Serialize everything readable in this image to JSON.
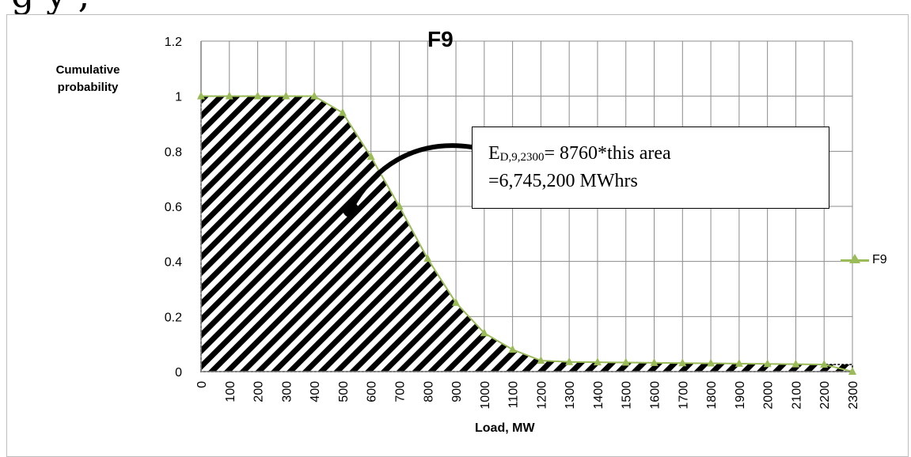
{
  "header_text": "g       y     ,",
  "chart_data": {
    "type": "area",
    "title": "F9",
    "xlabel": "Load, MW",
    "ylabel": "Cumulative probability",
    "x": [
      0,
      100,
      200,
      300,
      400,
      500,
      600,
      700,
      800,
      900,
      1000,
      1100,
      1200,
      1300,
      1400,
      1500,
      1600,
      1700,
      1800,
      1900,
      2000,
      2100,
      2200,
      2300
    ],
    "xlim": [
      0,
      2300
    ],
    "ylim": [
      0,
      1.2
    ],
    "y_ticks": [
      "0",
      "0.2",
      "0.4",
      "0.6",
      "0.8",
      "1",
      "1.2"
    ],
    "series": [
      {
        "name": "F9",
        "values": [
          1.0,
          1.0,
          1.0,
          1.0,
          1.0,
          0.94,
          0.78,
          0.6,
          0.41,
          0.25,
          0.14,
          0.08,
          0.04,
          0.035,
          0.034,
          0.033,
          0.032,
          0.031,
          0.03,
          0.029,
          0.028,
          0.027,
          0.026,
          0.0
        ],
        "color": "#9bbb59"
      }
    ],
    "grid": true,
    "legend_position": "right",
    "fill_pattern": "diagonal-hatch",
    "annotation": {
      "line1_prefix": "E",
      "line1_sub": "D,9,2300",
      "line1_suffix": "= 8760*this area",
      "line2": "=6,745,200 MWhrs"
    }
  }
}
